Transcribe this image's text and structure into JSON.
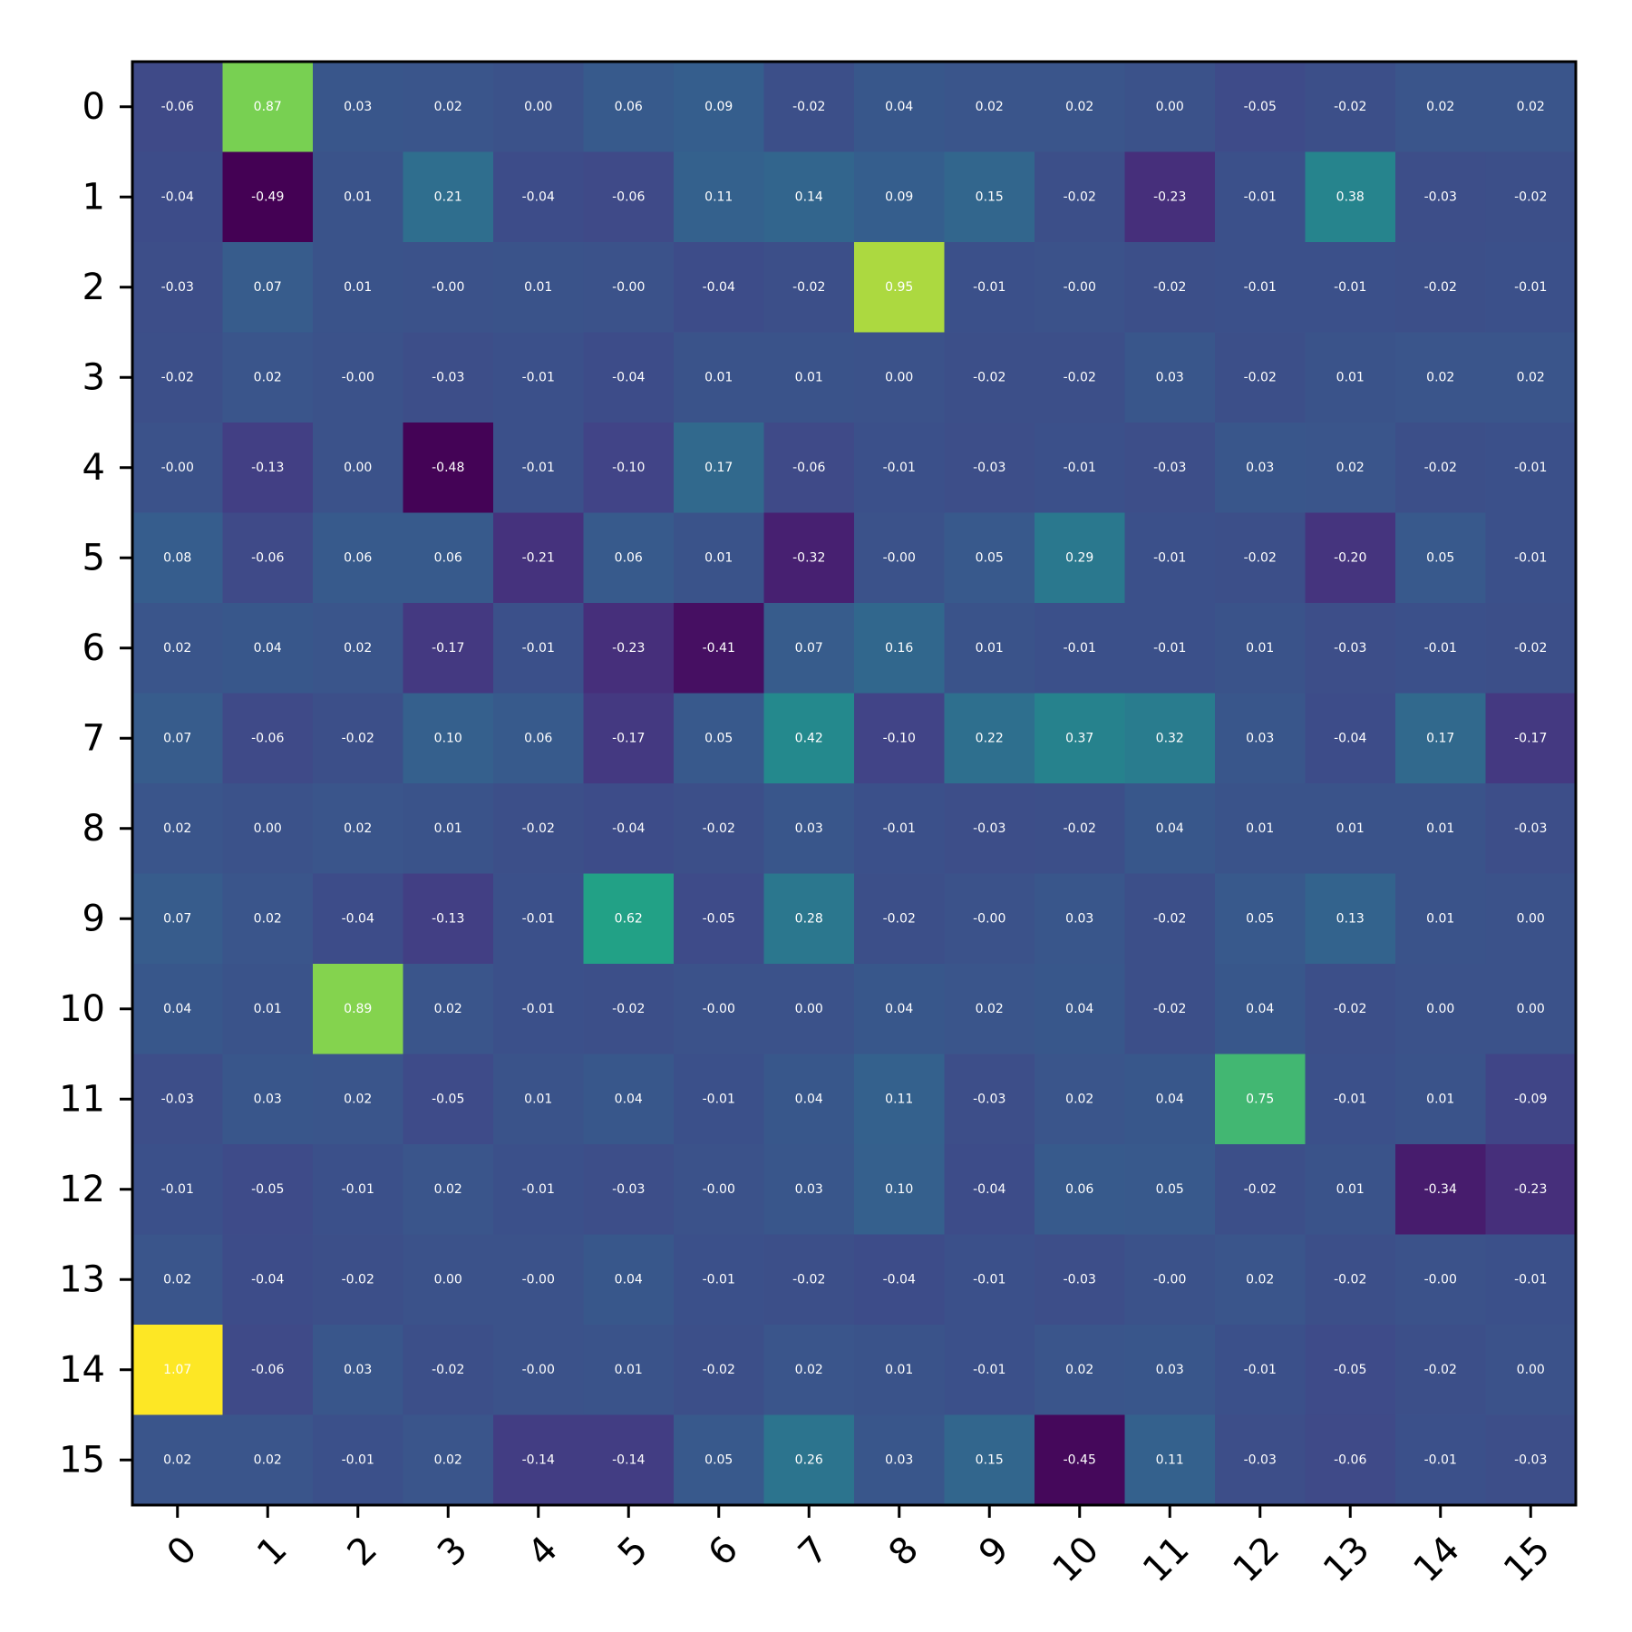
{
  "chart_data": {
    "type": "heatmap",
    "title": "",
    "xlabel": "",
    "ylabel": "",
    "colormap": "viridis",
    "value_range": [
      -0.49,
      1.07
    ],
    "grid": false,
    "x_categories": [
      "0",
      "1",
      "2",
      "3",
      "4",
      "5",
      "6",
      "7",
      "8",
      "9",
      "10",
      "11",
      "12",
      "13",
      "14",
      "15"
    ],
    "y_categories": [
      "0",
      "1",
      "2",
      "3",
      "4",
      "5",
      "6",
      "7",
      "8",
      "9",
      "10",
      "11",
      "12",
      "13",
      "14",
      "15"
    ],
    "values": [
      [
        -0.06,
        0.87,
        0.03,
        0.02,
        0.0,
        0.06,
        0.09,
        -0.02,
        0.04,
        0.02,
        0.02,
        0.0,
        -0.05,
        -0.02,
        0.02,
        0.02
      ],
      [
        -0.04,
        -0.49,
        0.01,
        0.21,
        -0.04,
        -0.06,
        0.11,
        0.14,
        0.09,
        0.15,
        -0.02,
        -0.23,
        -0.01,
        0.38,
        -0.03,
        -0.02
      ],
      [
        -0.03,
        0.07,
        0.01,
        -0.0,
        0.01,
        -0.0,
        -0.04,
        -0.02,
        0.95,
        -0.01,
        -0.0,
        -0.02,
        -0.01,
        -0.01,
        -0.02,
        -0.01
      ],
      [
        -0.02,
        0.02,
        -0.0,
        -0.03,
        -0.01,
        -0.04,
        0.01,
        0.01,
        0.0,
        -0.02,
        -0.02,
        0.03,
        -0.02,
        0.01,
        0.02,
        0.02
      ],
      [
        -0.0,
        -0.13,
        0.0,
        -0.48,
        -0.01,
        -0.1,
        0.17,
        -0.06,
        -0.01,
        -0.03,
        -0.01,
        -0.03,
        0.03,
        0.02,
        -0.02,
        -0.01
      ],
      [
        0.08,
        -0.06,
        0.06,
        0.06,
        -0.21,
        0.06,
        0.01,
        -0.32,
        -0.0,
        0.05,
        0.29,
        -0.01,
        -0.02,
        -0.2,
        0.05,
        -0.01
      ],
      [
        0.02,
        0.04,
        0.02,
        -0.17,
        -0.01,
        -0.23,
        -0.41,
        0.07,
        0.16,
        0.01,
        -0.01,
        -0.01,
        0.01,
        -0.03,
        -0.01,
        -0.02
      ],
      [
        0.07,
        -0.06,
        -0.02,
        0.1,
        0.06,
        -0.17,
        0.05,
        0.42,
        -0.1,
        0.22,
        0.37,
        0.32,
        0.03,
        -0.04,
        0.17,
        -0.17
      ],
      [
        0.02,
        0.0,
        0.02,
        0.01,
        -0.02,
        -0.04,
        -0.02,
        0.03,
        -0.01,
        -0.03,
        -0.02,
        0.04,
        0.01,
        0.01,
        0.01,
        -0.03
      ],
      [
        0.07,
        0.02,
        -0.04,
        -0.13,
        -0.01,
        0.62,
        -0.05,
        0.28,
        -0.02,
        -0.0,
        0.03,
        -0.02,
        0.05,
        0.13,
        0.01,
        0.0
      ],
      [
        0.04,
        0.01,
        0.89,
        0.02,
        -0.01,
        -0.02,
        -0.0,
        0.0,
        0.04,
        0.02,
        0.04,
        -0.02,
        0.04,
        -0.02,
        0.0,
        0.0
      ],
      [
        -0.03,
        0.03,
        0.02,
        -0.05,
        0.01,
        0.04,
        -0.01,
        0.04,
        0.11,
        -0.03,
        0.02,
        0.04,
        0.75,
        -0.01,
        0.01,
        -0.09
      ],
      [
        -0.01,
        -0.05,
        -0.01,
        0.02,
        -0.01,
        -0.03,
        -0.0,
        0.03,
        0.1,
        -0.04,
        0.06,
        0.05,
        -0.02,
        0.01,
        -0.34,
        -0.23
      ],
      [
        0.02,
        -0.04,
        -0.02,
        0.0,
        -0.0,
        0.04,
        -0.01,
        -0.02,
        -0.04,
        -0.01,
        -0.03,
        -0.0,
        0.02,
        -0.02,
        -0.0,
        -0.01
      ],
      [
        1.07,
        -0.06,
        0.03,
        -0.02,
        -0.0,
        0.01,
        -0.02,
        0.02,
        0.01,
        -0.01,
        0.02,
        0.03,
        -0.01,
        -0.05,
        -0.02,
        0.0
      ],
      [
        0.02,
        0.02,
        -0.01,
        0.02,
        -0.14,
        -0.14,
        0.05,
        0.26,
        0.03,
        0.15,
        -0.45,
        0.11,
        -0.03,
        -0.06,
        -0.01,
        -0.03
      ]
    ]
  }
}
